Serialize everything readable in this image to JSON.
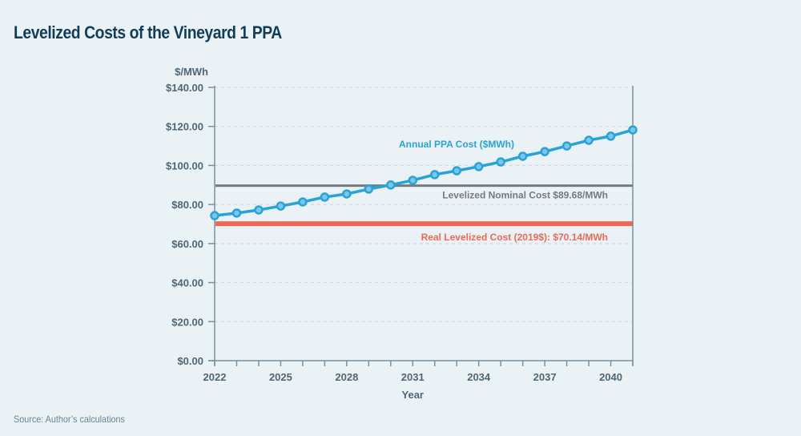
{
  "title": "Levelized Costs of the Vineyard 1 PPA",
  "source": "Source: Author’s calculations",
  "chart_data": {
    "type": "line",
    "title": "Levelized Costs of the Vineyard 1 PPA",
    "xlabel": "Year",
    "ylabel": "$/MWh",
    "xlim": [
      2022,
      2041
    ],
    "ylim": [
      0,
      140
    ],
    "grid": true,
    "x_ticks": [
      2022,
      2023,
      2024,
      2025,
      2026,
      2027,
      2028,
      2029,
      2030,
      2031,
      2032,
      2033,
      2034,
      2035,
      2036,
      2037,
      2038,
      2039,
      2040,
      2041
    ],
    "x_tick_labels": [
      "2022",
      "2025",
      "2028",
      "2031",
      "2034",
      "2037",
      "2040"
    ],
    "x_tick_label_values": [
      2022,
      2025,
      2028,
      2031,
      2034,
      2037,
      2040
    ],
    "y_ticks": [
      0,
      20,
      40,
      60,
      80,
      100,
      120,
      140
    ],
    "y_tick_labels": [
      "$0.00",
      "$20.00",
      "$40.00",
      "$60.00",
      "$80.00",
      "$100.00",
      "$120.00",
      "$140.00"
    ],
    "series": [
      {
        "name": "Annual PPA Cost ($MWh)",
        "label": "Annual PPA Cost ($MWh)",
        "color": "#27a3db",
        "x": [
          2022,
          2023,
          2024,
          2025,
          2026,
          2027,
          2028,
          2029,
          2030,
          2031,
          2032,
          2033,
          2034,
          2035,
          2036,
          2037,
          2038,
          2039,
          2040,
          2041
        ],
        "values": [
          74.3,
          75.6,
          77.2,
          79.2,
          81.3,
          83.8,
          85.4,
          87.9,
          90.0,
          92.4,
          95.3,
          97.3,
          99.4,
          101.8,
          104.7,
          107.1,
          110.0,
          112.9,
          115.0,
          118.2
        ]
      }
    ],
    "reference_lines": [
      {
        "name": "Levelized Nominal Cost",
        "value": 89.68,
        "label": "Levelized Nominal Cost $89.68/MWh",
        "color": "#737a80"
      },
      {
        "name": "Real Levelized Cost (2019$)",
        "value": 70.14,
        "label": "Real Levelized Cost (2019$): $70.14/MWh",
        "color": "#ec6a55"
      }
    ]
  }
}
